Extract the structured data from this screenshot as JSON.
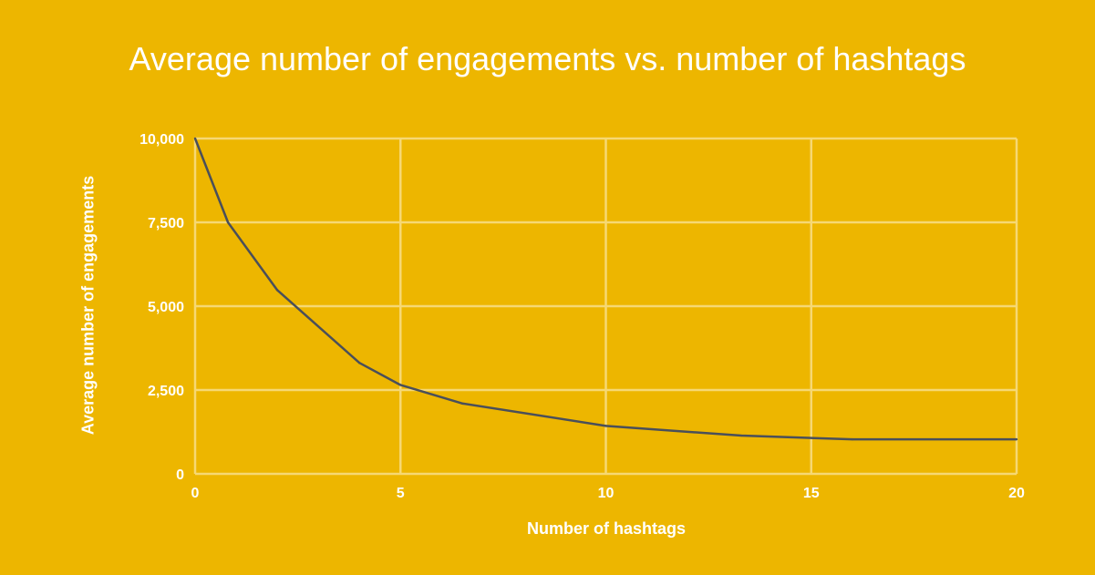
{
  "chart_data": {
    "type": "line",
    "title": "Average number of engagements vs. number of hashtags",
    "xlabel": "Number of hashtags",
    "ylabel": "Average number of engagements",
    "xlim": [
      0,
      20
    ],
    "ylim": [
      0,
      10000
    ],
    "x_ticks": [
      "0",
      "5",
      "10",
      "15",
      "20"
    ],
    "y_ticks": [
      "0",
      "2,500",
      "5,000",
      "7,500",
      "10,000"
    ],
    "grid": true,
    "legend": "none",
    "series": [
      {
        "x": [
          0,
          0.8,
          2,
          4,
          5,
          6.5,
          10,
          13.3,
          16,
          20
        ],
        "y": [
          10000,
          7500,
          5480,
          3310,
          2650,
          2100,
          1430,
          1140,
          1030,
          1030
        ]
      }
    ],
    "colors": {
      "background": "#EDB600",
      "grid": "#F6D874",
      "line": "#4A4F5A",
      "text": "#FFFFFF"
    }
  }
}
